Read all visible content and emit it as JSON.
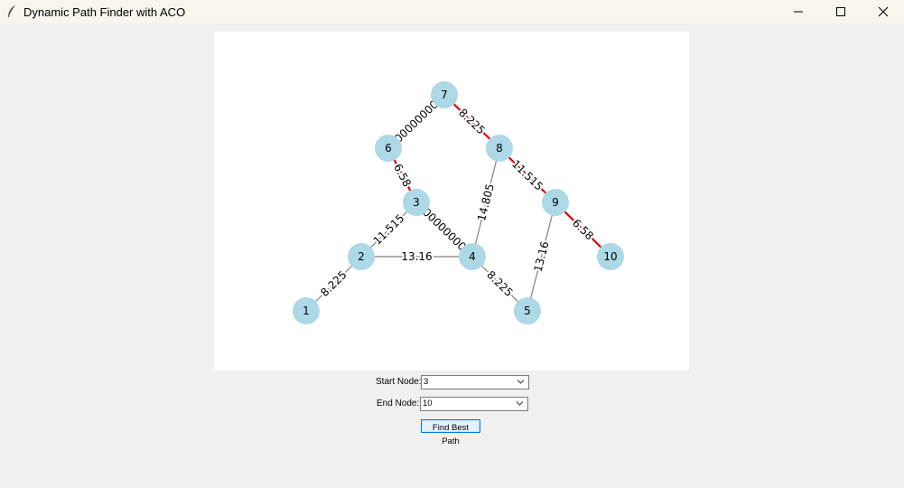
{
  "window": {
    "title": "Dynamic Path Finder with ACO",
    "icon": "feather-icon",
    "controls": [
      "minimize-icon",
      "maximize-icon",
      "close-icon"
    ]
  },
  "graph": {
    "nodes": [
      {
        "id": "1",
        "label": "1"
      },
      {
        "id": "2",
        "label": "2"
      },
      {
        "id": "3",
        "label": "3"
      },
      {
        "id": "4",
        "label": "4"
      },
      {
        "id": "5",
        "label": "5"
      },
      {
        "id": "6",
        "label": "6"
      },
      {
        "id": "7",
        "label": "7"
      },
      {
        "id": "8",
        "label": "8"
      },
      {
        "id": "9",
        "label": "9"
      },
      {
        "id": "10",
        "label": "10"
      }
    ],
    "edges": [
      {
        "from": "1",
        "to": "2",
        "label": "8.225",
        "highlighted": false
      },
      {
        "from": "2",
        "to": "3",
        "label": "11.515",
        "highlighted": false
      },
      {
        "from": "2",
        "to": "4",
        "label": "13.16",
        "highlighted": false
      },
      {
        "from": "3",
        "to": "4",
        "label": "00000000",
        "highlighted": false
      },
      {
        "from": "4",
        "to": "5",
        "label": "8.225",
        "highlighted": false
      },
      {
        "from": "4",
        "to": "8",
        "label": "14.805",
        "highlighted": false
      },
      {
        "from": "5",
        "to": "9",
        "label": "13.16",
        "highlighted": false
      },
      {
        "from": "3",
        "to": "6",
        "label": "6.58",
        "highlighted": true
      },
      {
        "from": "6",
        "to": "7",
        "label": "00000000",
        "highlighted": true
      },
      {
        "from": "7",
        "to": "8",
        "label": "8.225",
        "highlighted": true
      },
      {
        "from": "8",
        "to": "9",
        "label": "11.515",
        "highlighted": true
      },
      {
        "from": "9",
        "to": "10",
        "label": "6.58",
        "highlighted": true
      }
    ],
    "colors": {
      "node": "#add8e6",
      "edge": "#808080",
      "path": "#e00000"
    }
  },
  "form": {
    "start_label": "Start Node:",
    "start_value": "3",
    "end_label": "End Node:",
    "end_value": "10",
    "button_label": "Find Best Path"
  }
}
